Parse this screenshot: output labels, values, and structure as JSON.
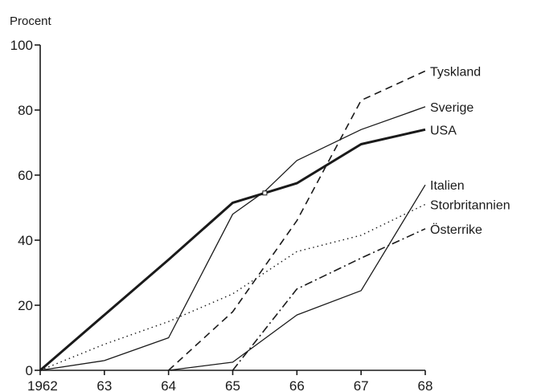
{
  "chart_data": {
    "type": "line",
    "title": "",
    "ylabel": "Procent",
    "xlabel": "",
    "x": [
      1962,
      1963,
      1964,
      1965,
      1966,
      1967,
      1968
    ],
    "x_tick_labels": [
      "1962",
      "63",
      "64",
      "65",
      "66",
      "67",
      "68"
    ],
    "y_ticks": [
      0,
      20,
      40,
      60,
      80,
      100
    ],
    "y_tick_labels": [
      "0",
      "20",
      "40",
      "60",
      "80",
      "100"
    ],
    "xlim": [
      1962,
      1968
    ],
    "ylim": [
      0,
      100
    ],
    "grid": false,
    "legend": "labels at line ends on the right",
    "series": [
      {
        "name": "USA",
        "style": "thick",
        "points": [
          [
            1962,
            0
          ],
          [
            1963,
            17
          ],
          [
            1964,
            34
          ],
          [
            1965,
            51.5
          ],
          [
            1965.5,
            54.5
          ],
          [
            1966,
            57.5
          ],
          [
            1967,
            69.5
          ],
          [
            1968,
            74
          ]
        ]
      },
      {
        "name": "Sverige",
        "style": "thin",
        "points": [
          [
            1962,
            0
          ],
          [
            1963,
            3
          ],
          [
            1964,
            10
          ],
          [
            1965,
            48
          ],
          [
            1965.5,
            55
          ],
          [
            1966,
            64.5
          ],
          [
            1967,
            74
          ],
          [
            1968,
            81
          ]
        ]
      },
      {
        "name": "Tyskland",
        "style": "dashed",
        "points": [
          [
            1964,
            0
          ],
          [
            1965,
            18
          ],
          [
            1966,
            46
          ],
          [
            1967,
            83
          ],
          [
            1968,
            92
          ]
        ]
      },
      {
        "name": "Italien",
        "style": "thin",
        "points": [
          [
            1964,
            0
          ],
          [
            1965,
            2.5
          ],
          [
            1966,
            17
          ],
          [
            1967,
            24.5
          ],
          [
            1968,
            57
          ]
        ]
      },
      {
        "name": "Storbritannien",
        "style": "dotted",
        "points": [
          [
            1962,
            0
          ],
          [
            1963,
            8
          ],
          [
            1964,
            15
          ],
          [
            1965,
            23.5
          ],
          [
            1966,
            36.5
          ],
          [
            1967,
            41.5
          ],
          [
            1968,
            51
          ]
        ]
      },
      {
        "name": "Österrike",
        "style": "dashdot",
        "points": [
          [
            1965,
            0
          ],
          [
            1966,
            25
          ],
          [
            1967,
            34.5
          ],
          [
            1968,
            43.5
          ]
        ]
      }
    ]
  }
}
